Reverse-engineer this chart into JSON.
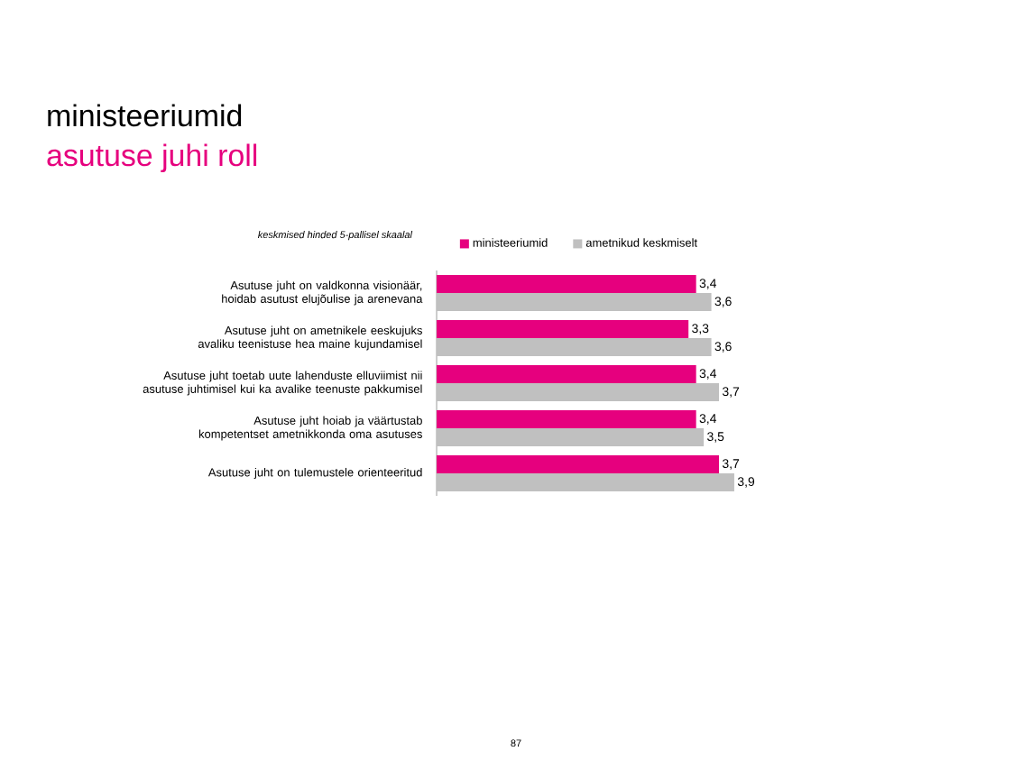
{
  "chart_data": {
    "type": "bar",
    "orientation": "horizontal",
    "title": "ministeeriumid",
    "subtitle": "asutuse juhi roll",
    "categories": [
      "Asutuse juht on valdkonna visionäär, hoidab asutust elujõulise ja arenevana",
      "Asutuse juht on ametnikele eeskujuks avaliku teenistuse hea maine kujundamisel",
      "Asutuse juht toetab uute lahenduste elluviimist nii asutuse juhtimisel kui ka avalike teenuste pakkumisel",
      "Asutuse juht hoiab ja väärtustab kompetentset ametnikkonda oma asutuses",
      "Asutuse juht on tulemustele orienteeritud"
    ],
    "series": [
      {
        "name": "ministeeriumid",
        "color": "#e6007e",
        "values": [
          3.4,
          3.3,
          3.4,
          3.4,
          3.7
        ],
        "value_labels": [
          "3,4",
          "3,3",
          "3,4",
          "3,4",
          "3,7"
        ]
      },
      {
        "name": "ametnikud keskmiselt",
        "color": "#c0c0c0",
        "values": [
          3.6,
          3.6,
          3.7,
          3.5,
          3.9
        ],
        "value_labels": [
          "3,6",
          "3,6",
          "3,7",
          "3,5",
          "3,9"
        ]
      }
    ],
    "legend": "top",
    "annotations": [
      "keskmised hinded 5-pallisel skaalal",
      "87"
    ]
  }
}
